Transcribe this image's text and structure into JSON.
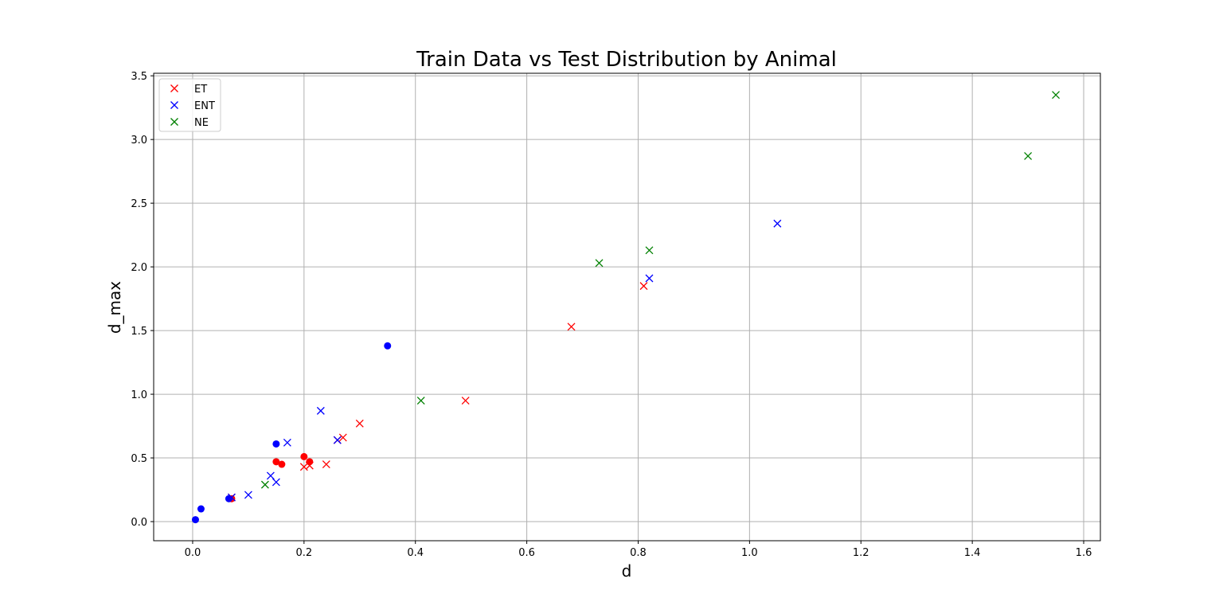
{
  "chart_data": {
    "type": "scatter",
    "title": "Train Data vs Test Distribution by Animal",
    "xlabel": "d",
    "ylabel": "d_max",
    "xlim": [
      -0.07,
      1.63
    ],
    "ylim": [
      -0.15,
      3.52
    ],
    "x_ticks": [
      "0.0",
      "0.2",
      "0.4",
      "0.6",
      "0.8",
      "1.0",
      "1.2",
      "1.4",
      "1.6"
    ],
    "y_ticks": [
      "0.0",
      "0.5",
      "1.0",
      "1.5",
      "2.0",
      "2.5",
      "3.0",
      "3.5"
    ],
    "grid": true,
    "legend_position": "top-left",
    "legend": [
      "ET",
      "ENT",
      "NE"
    ],
    "series": [
      {
        "name": "ET",
        "kind": "test",
        "marker": "x",
        "color": "#ff0000",
        "points": [
          [
            0.07,
            0.19
          ],
          [
            0.2,
            0.43
          ],
          [
            0.21,
            0.44
          ],
          [
            0.24,
            0.45
          ],
          [
            0.26,
            0.64
          ],
          [
            0.27,
            0.66
          ],
          [
            0.3,
            0.77
          ],
          [
            0.49,
            0.95
          ],
          [
            0.68,
            1.53
          ],
          [
            0.81,
            1.85
          ]
        ]
      },
      {
        "kind": "train",
        "marker": "circle",
        "color": "#ff0000",
        "points": [
          [
            0.07,
            0.18
          ],
          [
            0.15,
            0.47
          ],
          [
            0.16,
            0.45
          ],
          [
            0.2,
            0.51
          ],
          [
            0.21,
            0.47
          ]
        ]
      },
      {
        "name": "ENT",
        "kind": "test",
        "marker": "x",
        "color": "#0000ff",
        "points": [
          [
            0.07,
            0.19
          ],
          [
            0.1,
            0.21
          ],
          [
            0.14,
            0.36
          ],
          [
            0.15,
            0.31
          ],
          [
            0.17,
            0.62
          ],
          [
            0.23,
            0.87
          ],
          [
            0.26,
            0.64
          ],
          [
            0.82,
            1.91
          ],
          [
            1.05,
            2.34
          ]
        ]
      },
      {
        "kind": "train",
        "marker": "circle",
        "color": "#0000ff",
        "points": [
          [
            0.005,
            0.015
          ],
          [
            0.015,
            0.1
          ],
          [
            0.065,
            0.18
          ],
          [
            0.15,
            0.61
          ],
          [
            0.35,
            1.38
          ]
        ]
      },
      {
        "name": "NE",
        "kind": "test",
        "marker": "x",
        "color": "#008000",
        "points": [
          [
            0.13,
            0.29
          ],
          [
            0.41,
            0.95
          ],
          [
            0.73,
            2.03
          ],
          [
            0.82,
            2.13
          ],
          [
            1.5,
            2.87
          ],
          [
            1.55,
            3.35
          ]
        ]
      }
    ]
  }
}
